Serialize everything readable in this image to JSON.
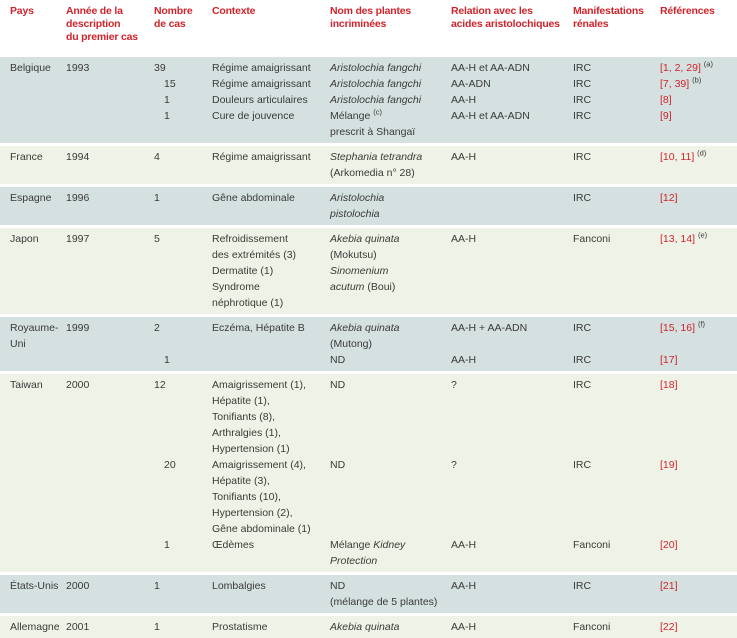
{
  "colors": {
    "header_red": "#cf242c",
    "band_blue": "#d4e1e0",
    "band_pale": "#eff3e7",
    "text": "#3a3a38"
  },
  "table": {
    "header": {
      "columns": [
        "Pays",
        "Année de la\ndescription\ndu premier cas",
        "Nombre\nde cas",
        "Contexte",
        "Nom des plantes\nincriminées",
        "Relation avec les\nacides aristolochiques",
        "Manifestations\nrénales",
        "Références"
      ]
    },
    "groups": [
      {
        "id": "belgique",
        "pays": "Belgique",
        "annee": "1993",
        "tone": "blue",
        "entries": [
          {
            "cas": "39",
            "contexte": "Régime amaigrissant",
            "plantes": [
              {
                "t": "Aristolochia fangchi",
                "i": true
              }
            ],
            "relation": "AA-H et AA-ADN",
            "renal": "IRC",
            "ref": "[1, 2, 29]",
            "note": "(a)"
          },
          {
            "cas": "15",
            "contexte": "Régime amaigrissant",
            "plantes": [
              {
                "t": "Aristolochia fangchi",
                "i": true
              }
            ],
            "relation": "AA-ADN",
            "renal": "IRC",
            "ref": "[7, 39]",
            "note": "(b)"
          },
          {
            "cas": "1",
            "contexte": "Douleurs articulaires",
            "plantes": [
              {
                "t": "Aristolochia fangchi",
                "i": true
              }
            ],
            "relation": "AA-H",
            "renal": "IRC",
            "ref": "[8]"
          },
          {
            "cas": "1",
            "contexte": "Cure de jouvence",
            "plantes": [
              {
                "t": "Mélange "
              },
              {
                "t": "(c)",
                "sup": true
              },
              {
                "t": "\nprescrit à Shangaï"
              }
            ],
            "relation": "AA-H et AA-ADN",
            "renal": "IRC",
            "ref": "[9]"
          }
        ]
      },
      {
        "id": "france",
        "pays": "France",
        "annee": "1994",
        "tone": "pale",
        "entries": [
          {
            "cas": "4",
            "contexte": "Régime amaigrissant",
            "plantes": [
              {
                "t": "Stephania tetrandra",
                "i": true
              },
              {
                "t": "\n(Arkomedia n° 28)"
              }
            ],
            "relation": "AA-H",
            "renal": "IRC",
            "ref": "[10, 11]",
            "note": "(d)"
          }
        ]
      },
      {
        "id": "espagne",
        "pays": "Espagne",
        "annee": "1996",
        "tone": "blue",
        "entries": [
          {
            "cas": "1",
            "contexte": "Gêne abdominale",
            "plantes": [
              {
                "t": "Aristolochia\npistolochia",
                "i": true
              }
            ],
            "relation": "",
            "renal": "IRC",
            "ref": "[12]"
          }
        ]
      },
      {
        "id": "japon",
        "pays": "Japon",
        "annee": "1997",
        "tone": "pale",
        "entries": [
          {
            "cas": "5",
            "contexte": "Refroidissement\ndes extrémités (3)\nDermatite (1)\nSyndrome\nnéphrotique (1)",
            "plantes": [
              {
                "t": "Akebia quinata",
                "i": true
              },
              {
                "t": "\n(Mokutsu)\n"
              },
              {
                "t": "Sinomenium\nacutum",
                "i": true
              },
              {
                "t": " (Boui)"
              }
            ],
            "relation": "AA-H",
            "renal": "Fanconi",
            "ref": "[13, 14]",
            "note": "(e)"
          }
        ]
      },
      {
        "id": "royaume-uni",
        "pays": "Royaume-Uni",
        "annee": "1999",
        "tone": "blue",
        "entries": [
          {
            "cas": "2",
            "contexte": "Eczéma, Hépatite B",
            "plantes": [
              {
                "t": "Akebia quinata",
                "i": true
              },
              {
                "t": "\n(Mutong)"
              }
            ],
            "relation": "AA-H + AA-ADN",
            "renal": "IRC",
            "ref": "[15, 16]",
            "note": "(f)"
          },
          {
            "cas": "1",
            "contexte": "",
            "plantes": [
              {
                "t": "ND"
              }
            ],
            "relation": "AA-H",
            "renal": "IRC",
            "ref": "[17]"
          }
        ]
      },
      {
        "id": "taiwan",
        "pays": "Taiwan",
        "annee": "2000",
        "tone": "pale",
        "entries": [
          {
            "cas": "12",
            "contexte": "Amaigrissement (1),\nHépatite (1),\nTonifiants (8),\nArthralgies (1),\nHypertension (1)",
            "plantes": [
              {
                "t": "ND"
              }
            ],
            "relation": "?",
            "renal": "IRC",
            "ref": "[18]"
          },
          {
            "cas": "20",
            "contexte": "Amaigrissement (4),\nHépatite (3),\nTonifiants (10),\nHypertension (2),\nGêne abdominale (1)",
            "plantes": [
              {
                "t": "ND"
              }
            ],
            "relation": "?",
            "renal": "IRC",
            "ref": "[19]"
          },
          {
            "cas": "1",
            "contexte": "Œdèmes",
            "plantes": [
              {
                "t": "Mélange "
              },
              {
                "t": "Kidney\nProtection",
                "i": true
              }
            ],
            "relation": "AA-H",
            "renal": "Fanconi",
            "ref": "[20]"
          }
        ]
      },
      {
        "id": "etats-unis",
        "pays": "États-Unis",
        "annee": "2000",
        "tone": "blue",
        "entries": [
          {
            "cas": "1",
            "contexte": "Lombalgies",
            "plantes": [
              {
                "t": "ND\n(mélange de 5 plantes)"
              }
            ],
            "relation": "AA-H",
            "renal": "IRC",
            "ref": "[21]"
          }
        ]
      },
      {
        "id": "allemagne",
        "pays": "Allemagne",
        "annee": "2001",
        "tone": "pale",
        "entries": [
          {
            "cas": "1",
            "contexte": "Prostatisme",
            "plantes": [
              {
                "t": "Akebia quinata",
                "i": true
              }
            ],
            "relation": "AA-H",
            "renal": "Fanconi",
            "ref": "[22]"
          }
        ]
      }
    ]
  }
}
